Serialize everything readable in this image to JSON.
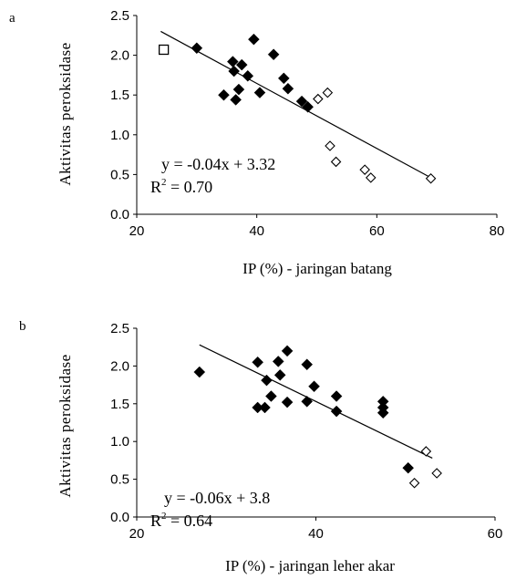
{
  "chart_data": [
    {
      "type": "scatter",
      "panel": "a",
      "xlabel": "IP (%) - jaringan batang",
      "ylabel": "Aktivitas peroksidase",
      "xlim": [
        20,
        80
      ],
      "ylim": [
        0,
        2.5
      ],
      "x_ticks": [
        "20",
        "40",
        "60",
        "80"
      ],
      "y_ticks": [
        "0.0",
        "0.5",
        "1.0",
        "1.5",
        "2.0",
        "2.5"
      ],
      "equation": "y = -0.04x + 3.32",
      "r2_prefix": "R",
      "r2_sup": "2",
      "r2_value": " = 0.70",
      "trendline": {
        "x1": 24,
        "x2": 69,
        "y1": 2.3,
        "y2": 0.46
      },
      "series": [
        {
          "marker": "filled-diamond",
          "points": [
            [
              30,
              2.09
            ],
            [
              34.5,
              1.5
            ],
            [
              36,
              1.92
            ],
            [
              36.2,
              1.8
            ],
            [
              36.5,
              1.44
            ],
            [
              37,
              1.57
            ],
            [
              37.5,
              1.88
            ],
            [
              38.5,
              1.74
            ],
            [
              39.5,
              2.2
            ],
            [
              40.5,
              1.53
            ],
            [
              42.8,
              2.01
            ],
            [
              44.5,
              1.71
            ],
            [
              45.2,
              1.58
            ],
            [
              47.5,
              1.42
            ],
            [
              48.5,
              1.35
            ]
          ]
        },
        {
          "marker": "open-diamond",
          "points": [
            [
              50.2,
              1.45
            ],
            [
              51.8,
              1.53
            ],
            [
              52.2,
              0.86
            ],
            [
              53.2,
              0.66
            ],
            [
              58,
              0.56
            ],
            [
              59,
              0.46
            ],
            [
              69,
              0.45
            ]
          ]
        },
        {
          "marker": "open-square",
          "points": [
            [
              24.5,
              2.07
            ]
          ]
        }
      ]
    },
    {
      "type": "scatter",
      "panel": "b",
      "xlabel": "IP (%) - jaringan leher akar",
      "ylabel": "Aktivitas peroksidase",
      "xlim": [
        20,
        60
      ],
      "ylim": [
        0,
        2.5
      ],
      "x_ticks": [
        "20",
        "40",
        "60"
      ],
      "y_ticks": [
        "0.0",
        "0.5",
        "1.0",
        "1.5",
        "2.0",
        "2.5"
      ],
      "equation": "y = -0.06x + 3.8",
      "r2_prefix": "R",
      "r2_sup": "2",
      "r2_value": " = 0.64",
      "trendline": {
        "x1": 27,
        "x2": 53,
        "y1": 2.28,
        "y2": 0.78
      },
      "series": [
        {
          "marker": "filled-diamond",
          "points": [
            [
              27,
              1.92
            ],
            [
              33.5,
              2.05
            ],
            [
              33.5,
              1.45
            ],
            [
              34.3,
              1.45
            ],
            [
              34.5,
              1.81
            ],
            [
              35,
              1.6
            ],
            [
              35.8,
              2.06
            ],
            [
              36,
              1.88
            ],
            [
              36.8,
              2.2
            ],
            [
              36.8,
              1.52
            ],
            [
              39,
              2.02
            ],
            [
              39,
              1.53
            ],
            [
              39.8,
              1.73
            ],
            [
              42.3,
              1.6
            ],
            [
              42.3,
              1.4
            ],
            [
              47.5,
              1.53
            ],
            [
              47.5,
              1.45
            ],
            [
              47.5,
              1.38
            ],
            [
              50.3,
              0.65
            ]
          ]
        },
        {
          "marker": "open-diamond",
          "points": [
            [
              51,
              0.45
            ],
            [
              52.3,
              0.87
            ],
            [
              53.5,
              0.58
            ]
          ]
        }
      ]
    }
  ]
}
